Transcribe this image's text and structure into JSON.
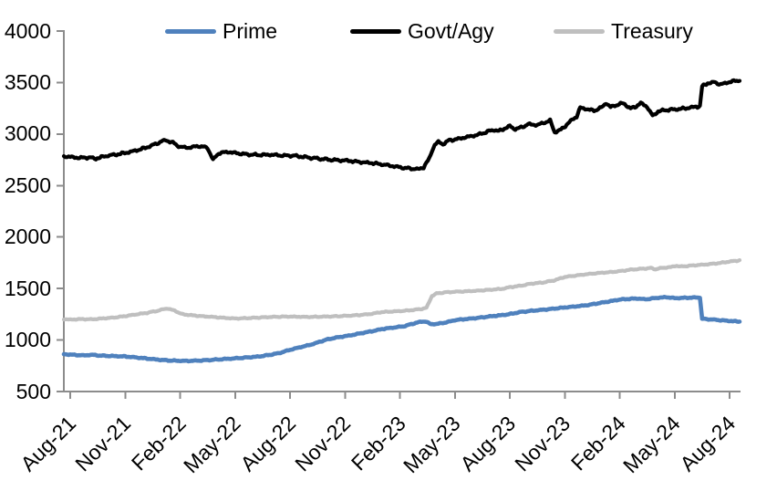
{
  "chart": {
    "background_color": "#ffffff",
    "axis_color": "#8c8c8c",
    "text_color": "#000000"
  },
  "legend": {
    "position": "top",
    "items": [
      {
        "label": "Prime",
        "color": "#4f81bd"
      },
      {
        "label": "Govt/Agy",
        "color": "#000000"
      },
      {
        "label": "Treasury",
        "color": "#bfbfbf"
      }
    ]
  },
  "chart_data": {
    "type": "line",
    "title": "",
    "xlabel": "",
    "ylabel": "",
    "grid": false,
    "legend_position": "top",
    "x_axis": {
      "unit": "month",
      "tick_labels": [
        "Aug-21",
        "Nov-21",
        "Feb-22",
        "May-22",
        "Aug-22",
        "Nov-22",
        "Feb-23",
        "May-23",
        "Aug-23",
        "Nov-23",
        "Feb-24",
        "May-24",
        "Aug-24"
      ],
      "months_between_ticks": 3,
      "data_range_months": [
        -0.35,
        36.55
      ]
    },
    "y_axis": {
      "min": 500,
      "max": 4000,
      "tick_step": 500,
      "tick_labels": [
        "500",
        "1000",
        "1500",
        "2000",
        "2500",
        "3000",
        "3500",
        "4000"
      ]
    },
    "series": [
      {
        "name": "Prime",
        "color": "#4f81bd",
        "points": [
          [
            -0.35,
            862
          ],
          [
            0,
            858
          ],
          [
            0.7,
            851
          ],
          [
            1.2,
            856
          ],
          [
            1.7,
            848
          ],
          [
            2.2,
            845
          ],
          [
            3,
            840
          ],
          [
            3.6,
            831
          ],
          [
            4.2,
            820
          ],
          [
            5,
            806
          ],
          [
            5.6,
            800
          ],
          [
            6.3,
            797
          ],
          [
            7,
            800
          ],
          [
            7.6,
            806
          ],
          [
            8.2,
            813
          ],
          [
            9,
            822
          ],
          [
            9.6,
            830
          ],
          [
            10.3,
            840
          ],
          [
            10.8,
            853
          ],
          [
            11.4,
            873
          ],
          [
            12,
            905
          ],
          [
            12.6,
            932
          ],
          [
            13.2,
            958
          ],
          [
            14,
            1005
          ],
          [
            14.6,
            1026
          ],
          [
            15.2,
            1042
          ],
          [
            16,
            1070
          ],
          [
            16.6,
            1090
          ],
          [
            17,
            1106
          ],
          [
            17.6,
            1120
          ],
          [
            18.2,
            1133
          ],
          [
            18.7,
            1158
          ],
          [
            19.1,
            1176
          ],
          [
            19.4,
            1181
          ],
          [
            19.7,
            1153
          ],
          [
            20.1,
            1158
          ],
          [
            20.6,
            1174
          ],
          [
            21,
            1193
          ],
          [
            21.6,
            1204
          ],
          [
            22.2,
            1214
          ],
          [
            23,
            1231
          ],
          [
            23.6,
            1242
          ],
          [
            24,
            1252
          ],
          [
            24.6,
            1272
          ],
          [
            25.2,
            1284
          ],
          [
            26,
            1297
          ],
          [
            26.6,
            1308
          ],
          [
            27,
            1316
          ],
          [
            27.6,
            1326
          ],
          [
            28.2,
            1338
          ],
          [
            29,
            1362
          ],
          [
            29.6,
            1380
          ],
          [
            30,
            1393
          ],
          [
            30.6,
            1400
          ],
          [
            31,
            1403
          ],
          [
            31.4,
            1395
          ],
          [
            31.8,
            1404
          ],
          [
            32.2,
            1412
          ],
          [
            32.6,
            1416
          ],
          [
            33,
            1406
          ],
          [
            33.4,
            1409
          ],
          [
            34,
            1412
          ],
          [
            34.38,
            1413
          ],
          [
            34.5,
            1206
          ],
          [
            35,
            1200
          ],
          [
            35.6,
            1191
          ],
          [
            36.1,
            1184
          ],
          [
            36.55,
            1179
          ]
        ]
      },
      {
        "name": "Govt/Agy",
        "color": "#000000",
        "points": [
          [
            -0.35,
            2782
          ],
          [
            0,
            2778
          ],
          [
            0.5,
            2768
          ],
          [
            1,
            2773
          ],
          [
            1.4,
            2761
          ],
          [
            2,
            2789
          ],
          [
            2.6,
            2803
          ],
          [
            3.2,
            2824
          ],
          [
            3.8,
            2849
          ],
          [
            4.4,
            2884
          ],
          [
            4.9,
            2922
          ],
          [
            5.2,
            2941
          ],
          [
            5.6,
            2916
          ],
          [
            6,
            2874
          ],
          [
            6.5,
            2868
          ],
          [
            7,
            2884
          ],
          [
            7.5,
            2866
          ],
          [
            7.8,
            2749
          ],
          [
            8.1,
            2813
          ],
          [
            8.6,
            2827
          ],
          [
            9,
            2816
          ],
          [
            9.6,
            2803
          ],
          [
            10.2,
            2797
          ],
          [
            11,
            2799
          ],
          [
            11.6,
            2791
          ],
          [
            12.2,
            2790
          ],
          [
            12.8,
            2776
          ],
          [
            13.4,
            2764
          ],
          [
            14,
            2753
          ],
          [
            14.6,
            2746
          ],
          [
            15.2,
            2741
          ],
          [
            15.8,
            2728
          ],
          [
            16.4,
            2720
          ],
          [
            17,
            2706
          ],
          [
            17.6,
            2689
          ],
          [
            18.2,
            2671
          ],
          [
            18.7,
            2664
          ],
          [
            19,
            2658
          ],
          [
            19.3,
            2678
          ],
          [
            19.6,
            2760
          ],
          [
            19.9,
            2896
          ],
          [
            20.1,
            2921
          ],
          [
            20.35,
            2903
          ],
          [
            20.7,
            2939
          ],
          [
            21.1,
            2950
          ],
          [
            21.6,
            2969
          ],
          [
            22.2,
            2990
          ],
          [
            22.7,
            3018
          ],
          [
            23.1,
            3041
          ],
          [
            23.4,
            3028
          ],
          [
            23.7,
            3053
          ],
          [
            24,
            3076
          ],
          [
            24.3,
            3047
          ],
          [
            24.7,
            3069
          ],
          [
            25,
            3096
          ],
          [
            25.5,
            3087
          ],
          [
            26,
            3119
          ],
          [
            26.2,
            3133
          ],
          [
            26.45,
            3017
          ],
          [
            26.8,
            3043
          ],
          [
            27.1,
            3090
          ],
          [
            27.4,
            3138
          ],
          [
            27.65,
            3170
          ],
          [
            27.85,
            3256
          ],
          [
            28.2,
            3241
          ],
          [
            28.6,
            3227
          ],
          [
            29,
            3256
          ],
          [
            29.25,
            3301
          ],
          [
            29.5,
            3261
          ],
          [
            29.9,
            3286
          ],
          [
            30.2,
            3299
          ],
          [
            30.6,
            3247
          ],
          [
            30.9,
            3268
          ],
          [
            31.15,
            3301
          ],
          [
            31.5,
            3264
          ],
          [
            31.8,
            3176
          ],
          [
            32.1,
            3220
          ],
          [
            32.5,
            3233
          ],
          [
            33,
            3239
          ],
          [
            33.6,
            3250
          ],
          [
            34.1,
            3263
          ],
          [
            34.38,
            3270
          ],
          [
            34.5,
            3463
          ],
          [
            34.8,
            3493
          ],
          [
            35.2,
            3503
          ],
          [
            35.5,
            3481
          ],
          [
            36,
            3506
          ],
          [
            36.55,
            3523
          ]
        ]
      },
      {
        "name": "Treasury",
        "color": "#bfbfbf",
        "points": [
          [
            -0.35,
            1203
          ],
          [
            0,
            1198
          ],
          [
            0.6,
            1203
          ],
          [
            1.2,
            1201
          ],
          [
            1.8,
            1210
          ],
          [
            2.4,
            1218
          ],
          [
            3,
            1232
          ],
          [
            3.6,
            1249
          ],
          [
            4.2,
            1264
          ],
          [
            4.8,
            1285
          ],
          [
            5.1,
            1300
          ],
          [
            5.3,
            1306
          ],
          [
            5.7,
            1286
          ],
          [
            6.1,
            1251
          ],
          [
            6.6,
            1241
          ],
          [
            7.2,
            1231
          ],
          [
            7.8,
            1224
          ],
          [
            8.4,
            1215
          ],
          [
            9,
            1209
          ],
          [
            9.6,
            1212
          ],
          [
            10.2,
            1217
          ],
          [
            11,
            1224
          ],
          [
            11.8,
            1228
          ],
          [
            12.4,
            1226
          ],
          [
            13,
            1224
          ],
          [
            13.8,
            1227
          ],
          [
            14.6,
            1231
          ],
          [
            15.2,
            1236
          ],
          [
            15.8,
            1243
          ],
          [
            16.4,
            1253
          ],
          [
            17,
            1271
          ],
          [
            17.6,
            1277
          ],
          [
            18.2,
            1283
          ],
          [
            18.8,
            1293
          ],
          [
            19.2,
            1303
          ],
          [
            19.45,
            1312
          ],
          [
            19.75,
            1428
          ],
          [
            20,
            1452
          ],
          [
            20.5,
            1463
          ],
          [
            21,
            1468
          ],
          [
            21.6,
            1473
          ],
          [
            22.2,
            1478
          ],
          [
            23,
            1489
          ],
          [
            23.6,
            1497
          ],
          [
            24,
            1513
          ],
          [
            24.6,
            1527
          ],
          [
            25.2,
            1548
          ],
          [
            25.8,
            1558
          ],
          [
            26.4,
            1578
          ],
          [
            27,
            1612
          ],
          [
            27.6,
            1626
          ],
          [
            28.2,
            1639
          ],
          [
            28.8,
            1650
          ],
          [
            29.4,
            1658
          ],
          [
            30,
            1668
          ],
          [
            30.6,
            1683
          ],
          [
            31.2,
            1692
          ],
          [
            31.7,
            1699
          ],
          [
            31.95,
            1687
          ],
          [
            32.3,
            1700
          ],
          [
            32.8,
            1708
          ],
          [
            33.1,
            1722
          ],
          [
            33.3,
            1713
          ],
          [
            33.7,
            1719
          ],
          [
            34.2,
            1727
          ],
          [
            34.8,
            1735
          ],
          [
            35.4,
            1746
          ],
          [
            36,
            1762
          ],
          [
            36.55,
            1773
          ]
        ]
      }
    ]
  }
}
